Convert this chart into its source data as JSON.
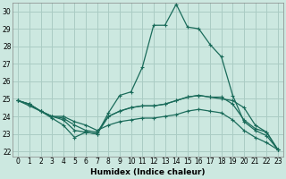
{
  "xlabel": "Humidex (Indice chaleur)",
  "background_color": "#cce8e0",
  "grid_color": "#aaccc4",
  "line_color": "#1a6b5a",
  "xlim": [
    -0.5,
    23.5
  ],
  "ylim": [
    21.7,
    30.5
  ],
  "xticks": [
    0,
    1,
    2,
    3,
    4,
    5,
    6,
    7,
    8,
    9,
    10,
    11,
    12,
    13,
    14,
    15,
    16,
    17,
    18,
    19,
    20,
    21,
    22,
    23
  ],
  "yticks": [
    22,
    23,
    24,
    25,
    26,
    27,
    28,
    29,
    30
  ],
  "series": [
    [
      24.9,
      24.7,
      24.3,
      23.9,
      23.5,
      22.8,
      23.1,
      23.0,
      24.2,
      25.2,
      25.4,
      26.8,
      29.2,
      29.2,
      30.4,
      29.1,
      29.0,
      28.1,
      27.4,
      25.2,
      23.7,
      23.2,
      22.9,
      22.1
    ],
    [
      24.9,
      24.7,
      24.3,
      24.0,
      23.8,
      23.2,
      23.1,
      23.0,
      24.0,
      24.3,
      24.5,
      24.6,
      24.6,
      24.7,
      24.9,
      25.1,
      25.2,
      25.1,
      25.1,
      24.7,
      23.8,
      23.3,
      23.1,
      22.1
    ],
    [
      24.9,
      24.7,
      24.3,
      24.0,
      23.9,
      23.5,
      23.2,
      23.1,
      24.0,
      24.3,
      24.5,
      24.6,
      24.6,
      24.7,
      24.9,
      25.1,
      25.2,
      25.1,
      25.0,
      24.9,
      24.5,
      23.5,
      23.1,
      22.1
    ],
    [
      24.9,
      24.6,
      24.3,
      24.0,
      24.0,
      23.7,
      23.5,
      23.2,
      23.5,
      23.7,
      23.8,
      23.9,
      23.9,
      24.0,
      24.1,
      24.3,
      24.4,
      24.3,
      24.2,
      23.8,
      23.2,
      22.8,
      22.5,
      22.1
    ]
  ]
}
